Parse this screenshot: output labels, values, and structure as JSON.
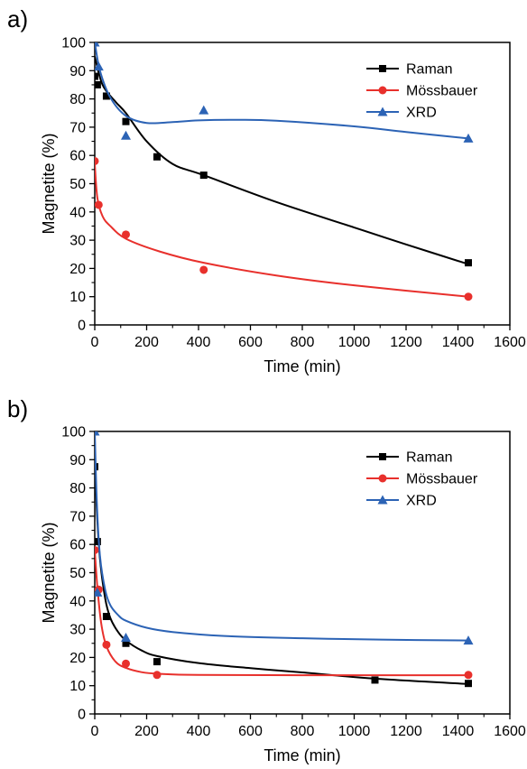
{
  "colors": {
    "raman": "#000000",
    "mossbauer": "#e8302c",
    "xrd": "#2c63b5"
  },
  "chart_data": [
    {
      "panel_label": "a)",
      "type": "line",
      "xlabel": "Time (min)",
      "ylabel": "Magnetite (%)",
      "xlim": [
        0,
        1600
      ],
      "ylim": [
        0,
        100
      ],
      "xticks": [
        "0",
        "200",
        "400",
        "600",
        "800",
        "1000",
        "1200",
        "1400",
        "1600"
      ],
      "yticks": [
        "0",
        "10",
        "20",
        "30",
        "40",
        "50",
        "60",
        "70",
        "80",
        "90",
        "100"
      ],
      "legend_position": "top-right",
      "series": [
        {
          "name": "Raman",
          "marker": "square",
          "color": "#000000",
          "points": [
            [
              0,
              88
            ],
            [
              10,
              85
            ],
            [
              45,
              81
            ],
            [
              120,
              72
            ],
            [
              240,
              59.5
            ],
            [
              420,
              53
            ],
            [
              1440,
              22
            ]
          ],
          "fit": [
            [
              0,
              95
            ],
            [
              30,
              85
            ],
            [
              80,
              79
            ],
            [
              120,
              75
            ],
            [
              200,
              65
            ],
            [
              300,
              57
            ],
            [
              420,
              53
            ],
            [
              700,
              43.5
            ],
            [
              1000,
              34.5
            ],
            [
              1200,
              28.5
            ],
            [
              1440,
              21.5
            ]
          ]
        },
        {
          "name": "Mössbauer",
          "marker": "circle",
          "color": "#e8302c",
          "points": [
            [
              0,
              58
            ],
            [
              15,
              42.5
            ],
            [
              120,
              32
            ],
            [
              420,
              19.5
            ],
            [
              1440,
              10
            ]
          ],
          "fit": [
            [
              0,
              57
            ],
            [
              10,
              45
            ],
            [
              30,
              38.5
            ],
            [
              60,
              35
            ],
            [
              120,
              30.5
            ],
            [
              250,
              26
            ],
            [
              420,
              22
            ],
            [
              700,
              17.5
            ],
            [
              1000,
              14
            ],
            [
              1440,
              10
            ]
          ]
        },
        {
          "name": "XRD",
          "marker": "triangle",
          "color": "#2c63b5",
          "points": [
            [
              0,
              100
            ],
            [
              15,
              91.5
            ],
            [
              120,
              67
            ],
            [
              420,
              76
            ],
            [
              1440,
              66
            ]
          ],
          "fit": [
            [
              0,
              100
            ],
            [
              20,
              90
            ],
            [
              60,
              80.5
            ],
            [
              120,
              74
            ],
            [
              200,
              71.5
            ],
            [
              300,
              71.8
            ],
            [
              400,
              72.4
            ],
            [
              550,
              72.6
            ],
            [
              700,
              72.3
            ],
            [
              1000,
              70.3
            ],
            [
              1200,
              68.3
            ],
            [
              1440,
              66
            ]
          ]
        }
      ]
    },
    {
      "panel_label": "b)",
      "type": "line",
      "xlabel": "Time (min)",
      "ylabel": "Magnetite (%)",
      "xlim": [
        0,
        1600
      ],
      "ylim": [
        0,
        100
      ],
      "xticks": [
        "0",
        "200",
        "400",
        "600",
        "800",
        "1000",
        "1200",
        "1400",
        "1600"
      ],
      "yticks": [
        "0",
        "10",
        "20",
        "30",
        "40",
        "50",
        "60",
        "70",
        "80",
        "90",
        "100"
      ],
      "legend_position": "top-right",
      "series": [
        {
          "name": "Raman",
          "marker": "square",
          "color": "#000000",
          "points": [
            [
              0,
              87.5
            ],
            [
              10,
              61
            ],
            [
              45,
              34.5
            ],
            [
              120,
              25
            ],
            [
              240,
              18.5
            ],
            [
              1080,
              12
            ],
            [
              1440,
              10.8
            ]
          ],
          "fit": [
            [
              0,
              91
            ],
            [
              8,
              72
            ],
            [
              20,
              55
            ],
            [
              40,
              41
            ],
            [
              60,
              34
            ],
            [
              90,
              29
            ],
            [
              120,
              26
            ],
            [
              180,
              22.5
            ],
            [
              240,
              20.5
            ],
            [
              400,
              18
            ],
            [
              600,
              16.2
            ],
            [
              800,
              14.7
            ],
            [
              1080,
              12.5
            ],
            [
              1440,
              10.6
            ]
          ]
        },
        {
          "name": "Mössbauer",
          "marker": "circle",
          "color": "#e8302c",
          "points": [
            [
              0,
              58
            ],
            [
              15,
              44
            ],
            [
              45,
              24.5
            ],
            [
              120,
              17.8
            ],
            [
              240,
              13.8
            ],
            [
              1440,
              13.8
            ]
          ],
          "fit": [
            [
              0,
              58
            ],
            [
              10,
              45
            ],
            [
              25,
              32
            ],
            [
              45,
              24
            ],
            [
              80,
              18.5
            ],
            [
              120,
              16.3
            ],
            [
              180,
              14.8
            ],
            [
              250,
              14.2
            ],
            [
              400,
              13.8
            ],
            [
              800,
              13.7
            ],
            [
              1440,
              13.7
            ]
          ]
        },
        {
          "name": "XRD",
          "marker": "triangle",
          "color": "#2c63b5",
          "points": [
            [
              0,
              100
            ],
            [
              10,
              43
            ],
            [
              120,
              27
            ],
            [
              1440,
              26
            ]
          ],
          "fit": [
            [
              0,
              100
            ],
            [
              8,
              75
            ],
            [
              20,
              56
            ],
            [
              40,
              44
            ],
            [
              60,
              38.5
            ],
            [
              90,
              35
            ],
            [
              120,
              33
            ],
            [
              200,
              30.5
            ],
            [
              300,
              29
            ],
            [
              500,
              27.6
            ],
            [
              800,
              26.8
            ],
            [
              1100,
              26.3
            ],
            [
              1440,
              26
            ]
          ]
        }
      ]
    }
  ]
}
